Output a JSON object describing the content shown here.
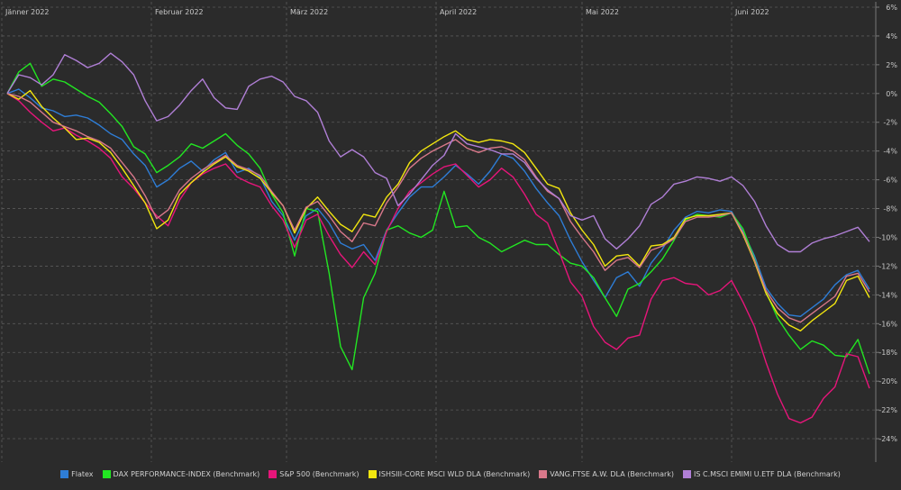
{
  "chart_data": {
    "type": "line",
    "months": [
      "Jänner 2022",
      "Februar 2022",
      "März 2022",
      "April 2022",
      "Mai 2022",
      "Juni 2022"
    ],
    "y_ticks": [
      "6%",
      "4%",
      "2%",
      "0%",
      "-2%",
      "-4%",
      "-6%",
      "-8%",
      "-10%",
      "-12%",
      "-14%",
      "-16%",
      "-18%",
      "-20%",
      "-22%",
      "-24%"
    ],
    "ylim": [
      -25,
      6
    ],
    "grid": true,
    "legend_position": "bottom",
    "series": [
      {
        "name": "Flatex",
        "color": "#2e7dd6",
        "values": [
          0,
          0.3,
          -0.3,
          -1,
          -1.2,
          -1.6,
          -1.5,
          -1.7,
          -2.2,
          -2.8,
          -3.2,
          -4.2,
          -5,
          -6.5,
          -6,
          -5.2,
          -4.7,
          -5.4,
          -4.6,
          -4.1,
          -5.5,
          -5.2,
          -5.8,
          -7.5,
          -8.5,
          -10.2,
          -8.5,
          -8,
          -9,
          -10.4,
          -10.8,
          -10.5,
          -11.6,
          -9.5,
          -8.3,
          -7.2,
          -6.5,
          -6.5,
          -5.8,
          -5,
          -5.6,
          -6.3,
          -5.4,
          -4.2,
          -4.5,
          -5.4,
          -6.6,
          -7.6,
          -8.5,
          -10.2,
          -11.7,
          -13,
          -14.2,
          -12.8,
          -12.4,
          -13.4,
          -11.8,
          -10.8,
          -9.5,
          -8.6,
          -8.2,
          -8.3,
          -8.1,
          -8.2,
          -9.6,
          -11.3,
          -13.5,
          -14.6,
          -15.4,
          -15.5,
          -14.9,
          -14.3,
          -13.3,
          -12.6,
          -12.3,
          -13.6
        ]
      },
      {
        "name": "DAX PERFORMANCE-INDEX (Benchmark)",
        "color": "#22e622",
        "values": [
          0,
          1.5,
          2.1,
          0.5,
          1,
          0.8,
          0.3,
          -0.2,
          -0.6,
          -1.4,
          -2.3,
          -3.7,
          -4.2,
          -5.5,
          -5,
          -4.4,
          -3.5,
          -3.8,
          -3.3,
          -2.8,
          -3.6,
          -4.2,
          -5.2,
          -7,
          -8.3,
          -11.3,
          -8,
          -8.2,
          -12.5,
          -17.6,
          -19.2,
          -14.2,
          -12.5,
          -9.5,
          -9.2,
          -9.7,
          -10,
          -9.5,
          -6.8,
          -9.3,
          -9.2,
          -10,
          -10.4,
          -11,
          -10.6,
          -10.2,
          -10.5,
          -10.5,
          -11.2,
          -11.8,
          -12,
          -12.8,
          -14.2,
          -15.5,
          -13.6,
          -13.2,
          -12.4,
          -11.5,
          -10.2,
          -8.8,
          -8.4,
          -8.5,
          -8.6,
          -8.3,
          -9.4,
          -11.5,
          -13.8,
          -15.6,
          -16.8,
          -17.8,
          -17.2,
          -17.5,
          -18.2,
          -18.3,
          -17.1,
          -19.5
        ]
      },
      {
        "name": "S&P 500 (Benchmark)",
        "color": "#e6157a",
        "values": [
          0,
          -0.5,
          -1.3,
          -2,
          -2.6,
          -2.4,
          -2.9,
          -3.3,
          -3.8,
          -4.5,
          -5.8,
          -6.6,
          -7.6,
          -8.5,
          -9.2,
          -7.4,
          -6.2,
          -5.6,
          -5.2,
          -4.9,
          -5.8,
          -6.2,
          -6.5,
          -7.8,
          -8.8,
          -10.7,
          -8.8,
          -8.4,
          -9.9,
          -11.2,
          -12.1,
          -11,
          -11.9,
          -9.6,
          -8,
          -6.8,
          -6.2,
          -5.6,
          -5.1,
          -4.9,
          -5.7,
          -6.5,
          -6,
          -5.2,
          -5.8,
          -7,
          -8.4,
          -9,
          -11,
          -13.1,
          -14.1,
          -16.2,
          -17.3,
          -17.8,
          -17,
          -16.8,
          -14.3,
          -13,
          -12.8,
          -13.2,
          -13.3,
          -14,
          -13.7,
          -13,
          -14.5,
          -16.2,
          -18.7,
          -20.9,
          -22.6,
          -22.9,
          -22.5,
          -21.2,
          -20.4,
          -18.1,
          -18.3,
          -20.5
        ]
      },
      {
        "name": "ISHSIII-CORE MSCI WLD DLA (Benchmark)",
        "color": "#f2e60f",
        "values": [
          0,
          -0.4,
          0.2,
          -0.9,
          -1.7,
          -2.4,
          -3.2,
          -3.1,
          -3.4,
          -4.1,
          -5.2,
          -6.4,
          -7.6,
          -9.4,
          -8.8,
          -7,
          -6.2,
          -5.5,
          -4.9,
          -4.4,
          -5.1,
          -5.4,
          -5.9,
          -6.9,
          -7.8,
          -9.7,
          -8,
          -7.2,
          -8.2,
          -9.1,
          -9.6,
          -8.4,
          -8.6,
          -7.2,
          -6.3,
          -4.8,
          -4,
          -3.5,
          -3,
          -2.6,
          -3.2,
          -3.4,
          -3.2,
          -3.3,
          -3.5,
          -4.1,
          -5.2,
          -6.3,
          -6.6,
          -8.3,
          -9.5,
          -10.5,
          -12,
          -11.3,
          -11.2,
          -12,
          -10.6,
          -10.5,
          -10,
          -8.7,
          -8.5,
          -8.5,
          -8.4,
          -8.3,
          -9.8,
          -11.7,
          -13.9,
          -15.3,
          -16.1,
          -16.5,
          -15.8,
          -15.2,
          -14.6,
          -13,
          -12.7,
          -14.2
        ]
      },
      {
        "name": "VANG.FTSE A.W. DLA (Benchmark)",
        "color": "#d9788a",
        "values": [
          0,
          -0.2,
          -0.6,
          -1.3,
          -2,
          -2.3,
          -2.6,
          -3,
          -3.3,
          -3.8,
          -4.8,
          -5.8,
          -7.1,
          -8.7,
          -8.1,
          -6.7,
          -5.9,
          -5.3,
          -4.8,
          -4.3,
          -5,
          -5.3,
          -5.7,
          -6.8,
          -7.8,
          -9.5,
          -7.9,
          -7.5,
          -8.5,
          -9.6,
          -10.3,
          -9,
          -9.2,
          -7.6,
          -6.5,
          -5.2,
          -4.5,
          -4,
          -3.6,
          -3.2,
          -3.8,
          -4.1,
          -3.8,
          -3.7,
          -4,
          -4.6,
          -5.8,
          -6.8,
          -7.3,
          -8.9,
          -10,
          -11,
          -12.3,
          -11.6,
          -11.4,
          -12.1,
          -10.9,
          -10.6,
          -10.1,
          -8.9,
          -8.6,
          -8.6,
          -8.5,
          -8.3,
          -9.7,
          -11.6,
          -13.7,
          -14.9,
          -15.6,
          -15.9,
          -15.3,
          -14.7,
          -14.1,
          -12.7,
          -12.5,
          -13.8
        ]
      },
      {
        "name": "IS C.MSCI EMIMI U.ETF DLA (Benchmark)",
        "color": "#b07fd6",
        "values": [
          0,
          1.3,
          1.1,
          0.6,
          1.3,
          2.7,
          2.3,
          1.8,
          2.1,
          2.8,
          2.2,
          1.3,
          -0.5,
          -1.9,
          -1.6,
          -0.8,
          0.2,
          1,
          -0.3,
          -1,
          -1.1,
          0.5,
          1,
          1.2,
          0.8,
          -0.2,
          -0.5,
          -1.3,
          -3.3,
          -4.4,
          -3.9,
          -4.4,
          -5.5,
          -5.9,
          -7.8,
          -7,
          -6,
          -5,
          -4.3,
          -2.8,
          -3.5,
          -3.7,
          -3.9,
          -4.2,
          -4.2,
          -4.8,
          -5.9,
          -6.7,
          -7.3,
          -8.5,
          -8.8,
          -8.5,
          -10.1,
          -10.8,
          -10.1,
          -9.2,
          -7.7,
          -7.2,
          -6.3,
          -6.1,
          -5.8,
          -5.9,
          -6.1,
          -5.8,
          -6.4,
          -7.5,
          -9.2,
          -10.5,
          -11,
          -11,
          -10.4,
          -10.1,
          -9.9,
          -9.6,
          -9.3,
          -10.3
        ]
      }
    ]
  }
}
